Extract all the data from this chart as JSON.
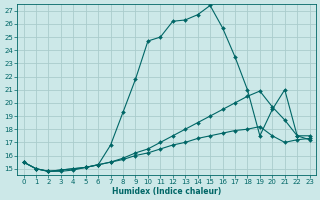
{
  "xlabel": "Humidex (Indice chaleur)",
  "bg_color": "#cce8e8",
  "grid_color": "#aacccc",
  "line_color": "#006666",
  "xlim": [
    -0.5,
    23.5
  ],
  "ylim": [
    14.5,
    27.5
  ],
  "xticks": [
    0,
    1,
    2,
    3,
    4,
    5,
    6,
    7,
    8,
    9,
    10,
    11,
    12,
    13,
    14,
    15,
    16,
    17,
    18,
    19,
    20,
    21,
    22,
    23
  ],
  "yticks": [
    15,
    16,
    17,
    18,
    19,
    20,
    21,
    22,
    23,
    24,
    25,
    26,
    27
  ],
  "line1_x": [
    0,
    1,
    2,
    3,
    4,
    5,
    6,
    7,
    8,
    9,
    10,
    11,
    12,
    13,
    14,
    15,
    16,
    17,
    18,
    19,
    20,
    21,
    22,
    23
  ],
  "line1_y": [
    15.5,
    15.0,
    14.8,
    14.8,
    14.9,
    15.1,
    15.3,
    16.8,
    19.3,
    21.8,
    24.7,
    25.0,
    26.2,
    26.3,
    26.7,
    27.4,
    25.7,
    23.5,
    21.0,
    17.5,
    19.5,
    21.0,
    17.5,
    17.5
  ],
  "line2_x": [
    0,
    1,
    2,
    3,
    4,
    5,
    6,
    7,
    8,
    9,
    10,
    11,
    12,
    13,
    14,
    15,
    16,
    17,
    18,
    19,
    20,
    21,
    22,
    23
  ],
  "line2_y": [
    15.5,
    15.0,
    14.8,
    14.9,
    15.0,
    15.1,
    15.3,
    15.5,
    15.8,
    16.2,
    16.5,
    17.0,
    17.5,
    18.0,
    18.5,
    19.0,
    19.5,
    20.0,
    20.5,
    20.9,
    19.7,
    18.7,
    17.5,
    17.2
  ],
  "line3_x": [
    0,
    1,
    2,
    3,
    4,
    5,
    6,
    7,
    8,
    9,
    10,
    11,
    12,
    13,
    14,
    15,
    16,
    17,
    18,
    19,
    20,
    21,
    22,
    23
  ],
  "line3_y": [
    15.5,
    15.0,
    14.8,
    14.9,
    15.0,
    15.1,
    15.3,
    15.5,
    15.7,
    16.0,
    16.2,
    16.5,
    16.8,
    17.0,
    17.3,
    17.5,
    17.7,
    17.9,
    18.0,
    18.2,
    17.5,
    17.0,
    17.2,
    17.3
  ]
}
